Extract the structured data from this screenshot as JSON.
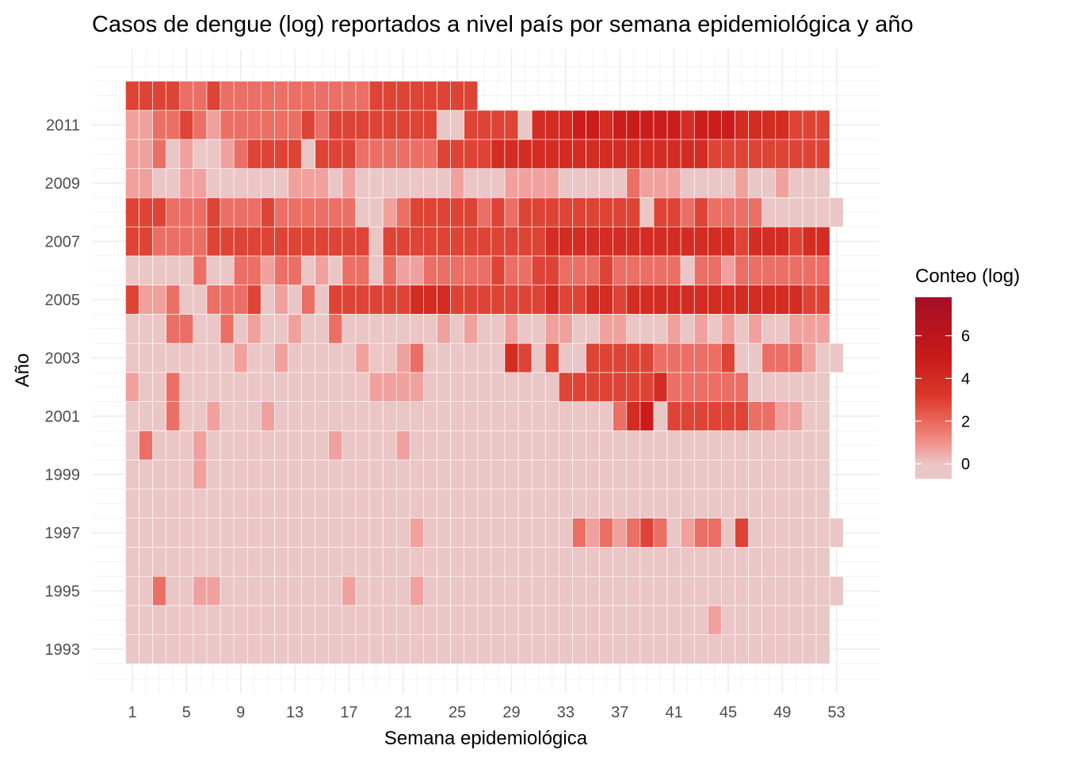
{
  "chart_data": {
    "type": "heatmap",
    "title": "Casos de dengue (log) reportados a nivel país por semana epidemiológica y año",
    "xlabel": "Semana epidemiológica",
    "ylabel": "Año",
    "x_ticks": [
      1,
      5,
      9,
      13,
      17,
      21,
      25,
      29,
      33,
      37,
      41,
      45,
      49,
      53
    ],
    "y_ticks": [
      1993,
      1995,
      1997,
      1999,
      2001,
      2003,
      2005,
      2007,
      2009,
      2011
    ],
    "xlim": [
      1,
      53
    ],
    "ylim": [
      1993,
      2012
    ],
    "grid": true,
    "legend": {
      "title": "Conteo (log)",
      "position": "right",
      "range": [
        -0.7,
        7.8
      ],
      "ticks": [
        0,
        2,
        4,
        6
      ]
    },
    "colors": {
      "low": "#ebc6c6",
      "mid_low": "#f2918b",
      "mid": "#e9675b",
      "mid_high": "#d9382a",
      "high": "#c81a19",
      "max": "#a50e26",
      "grid": "#ebebeb",
      "tile_border": "#ffffff"
    },
    "rows": [
      {
        "year": 1993,
        "weeks": [
          1,
          52
        ],
        "values": "...................................................."
      },
      {
        "year": 1994,
        "weeks": [
          1,
          52
        ],
        "values": "...........................................1........"
      },
      {
        "year": 1995,
        "weeks": [
          1,
          53
        ],
        "values": "..2..11.........1....1..............................."
      },
      {
        "year": 1996,
        "weeks": [
          1,
          52
        ],
        "values": "...................................................."
      },
      {
        "year": 1997,
        "weeks": [
          1,
          53
        ],
        "values": ".....................1...........2121232.122.3........"
      },
      {
        "year": 1998,
        "weeks": [
          1,
          52
        ],
        "values": "...................................................."
      },
      {
        "year": 1999,
        "weeks": [
          1,
          52
        ],
        "values": ".....1.............................................."
      },
      {
        "year": 2000,
        "weeks": [
          1,
          52
        ],
        "values": ".2...1.........1....1..............................."
      },
      {
        "year": 2001,
        "weeks": [
          1,
          52
        ],
        "values": "...2..1...1.........................245.3333332211..."
      },
      {
        "year": 2002,
        "weeks": [
          1,
          52
        ],
        "values": "1..2..............1111..........33333334222222......."
      },
      {
        "year": 2003,
        "weeks": [
          1,
          53
        ],
        "values": "........1..1.....1..12......43.3..33333222223..2221.."
      },
      {
        "year": 2004,
        "weeks": [
          1,
          52
        ],
        "values": "...22..2.1..1..2.......1.1..1..11..11...1.1.1.1..1112"
      },
      {
        "year": 2005,
        "weeks": [
          1,
          52
        ],
        "values": "3112..2223.1.2.3333334443333333433443444444444444433.."
      },
      {
        "year": 2006,
        "weeks": [
          1,
          52
        ],
        "values": ".....2..22122.1.22.2112222232233222322222.22122222222"
      },
      {
        "year": 2007,
        "weeks": [
          1,
          52
        ],
        "values": "332222333333333333.3333333333334444444444444434443444"
      },
      {
        "year": 2008,
        "weeks": [
          1,
          53
        ],
        "values": "33322232223222222..1233333232333333333.33232222......."
      },
      {
        "year": 2009,
        "weeks": [
          1,
          52
        ],
        "values": "11..11......111.1.......1...1111.....2111....1..1...."
      },
      {
        "year": 2010,
        "weeks": [
          1,
          52
        ],
        "values": "112.1..123333.3332222223333444444444444444433333333333"
      },
      {
        "year": 2011,
        "weeks": [
          1,
          52
        ],
        "values": "11223212222223233333333..3333.444554555554555444433332"
      },
      {
        "year": 2012,
        "weeks": [
          1,
          26
        ],
        "values": "33332232222222222233333333"
      }
    ],
    "value_scale": {
      ".": -0.5,
      "1": 0.7,
      "2": 1.8,
      "3": 2.9,
      "4": 3.9,
      "5": 4.8
    }
  }
}
